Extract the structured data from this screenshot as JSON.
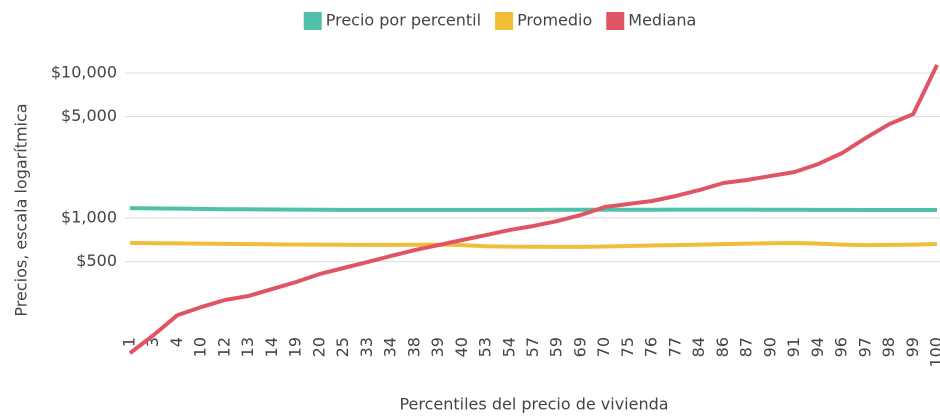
{
  "chart_data": {
    "type": "line",
    "y_label": "Precios, escala logarítmica",
    "x_label": "Percentiles del precio de vivienda",
    "categories": [
      "1",
      "3",
      "4",
      "10",
      "12",
      "13",
      "14",
      "19",
      "20",
      "25",
      "33",
      "34",
      "38",
      "39",
      "40",
      "53",
      "54",
      "57",
      "59",
      "69",
      "70",
      "75",
      "76",
      "77",
      "84",
      "86",
      "87",
      "90",
      "91",
      "94",
      "96",
      "97",
      "98",
      "99",
      "100"
    ],
    "series": [
      {
        "name": "Precio por percentil",
        "color": "#4fc1a8",
        "values": [
          1170,
          1165,
          1160,
          1155,
          1150,
          1148,
          1145,
          1142,
          1140,
          1138,
          1138,
          1138,
          1138,
          1138,
          1138,
          1138,
          1138,
          1138,
          1140,
          1140,
          1140,
          1140,
          1140,
          1142,
          1142,
          1142,
          1142,
          1140,
          1140,
          1138,
          1138,
          1136,
          1136,
          1135,
          1135
        ]
      },
      {
        "name": "Promedio",
        "color": "#f0bf37",
        "values": [
          673,
          670,
          668,
          665,
          663,
          661,
          658,
          656,
          655,
          654,
          653,
          653,
          654,
          655,
          650,
          638,
          635,
          633,
          632,
          632,
          636,
          641,
          646,
          650,
          655,
          660,
          665,
          670,
          672,
          665,
          655,
          650,
          652,
          655,
          662
        ]
      },
      {
        "name": "Mediana",
        "color": "#e05566",
        "values": [
          117,
          156,
          214,
          243,
          272,
          290,
          324,
          362,
          411,
          452,
          497,
          547,
          601,
          651,
          705,
          763,
          827,
          881,
          953,
          1049,
          1191,
          1249,
          1310,
          1418,
          1560,
          1743,
          1828,
          1950,
          2075,
          2357,
          2805,
          3565,
          4450,
          5210,
          11360
        ]
      }
    ],
    "log_scale": true,
    "ylim": [
      110,
      12000
    ],
    "yticks": [
      {
        "value": 500,
        "label": "$500"
      },
      {
        "value": 1000,
        "label": "$1,000"
      },
      {
        "value": 5000,
        "label": "$5,000"
      },
      {
        "value": 10000,
        "label": "$10,000"
      }
    ],
    "grid": true,
    "legend": "top"
  }
}
